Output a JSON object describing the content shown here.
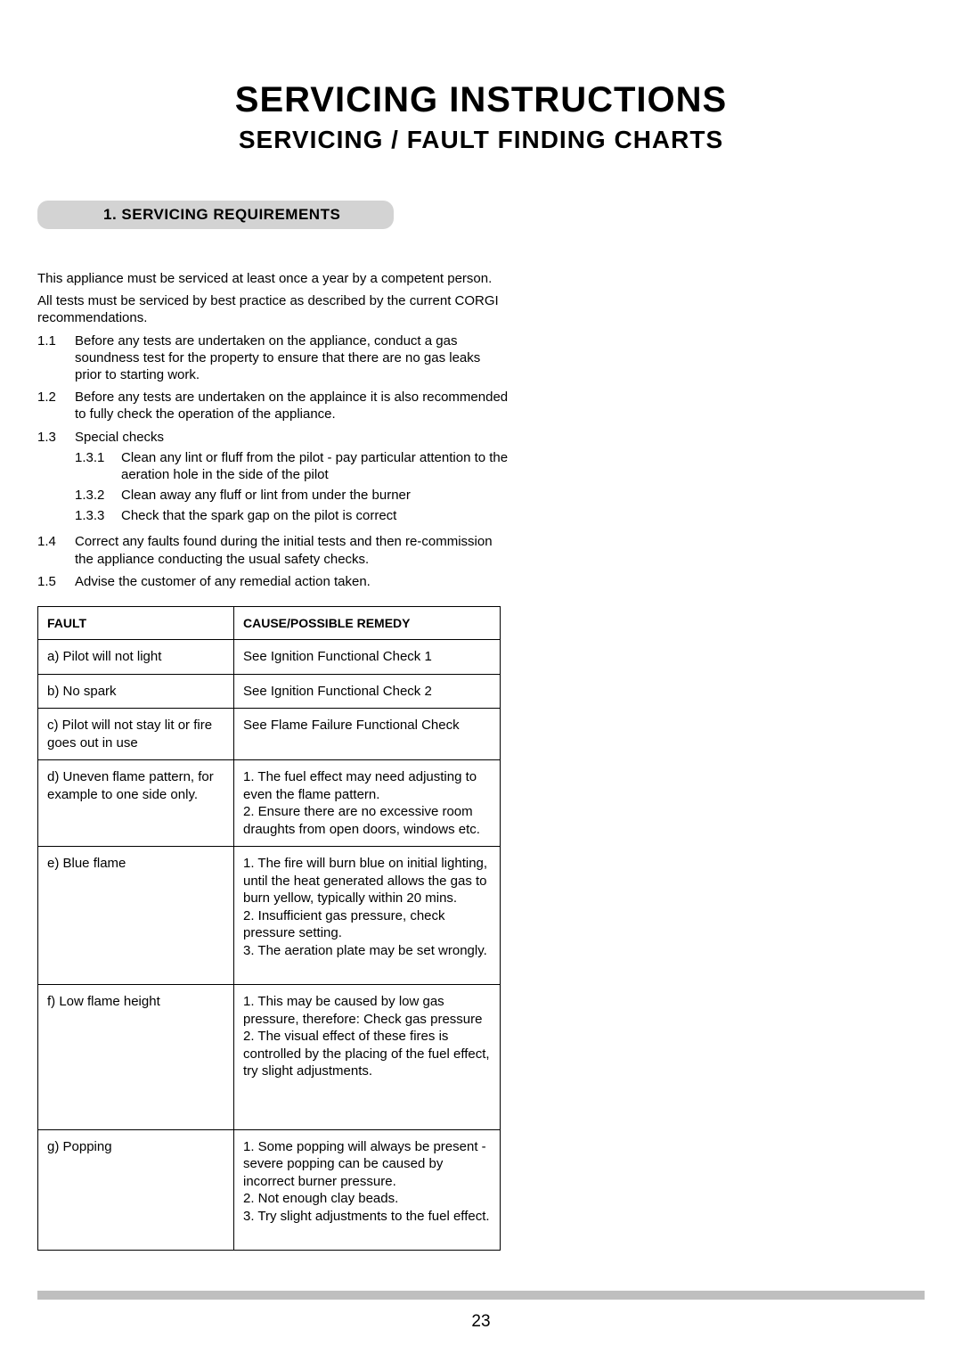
{
  "title_main": "SERVICING INSTRUCTIONS",
  "title_sub": "SERVICING / FAULT FINDING CHARTS",
  "section_heading": "1. SERVICING REQUIREMENTS",
  "intro_paras": [
    "This appliance must be serviced at least once a year by a competent person.",
    "All tests must be serviced by best practice as described by the current CORGI recommendations."
  ],
  "items": [
    {
      "num": "1.1",
      "text": "Before any tests are undertaken on the appliance, conduct a gas soundness test for the property to ensure that there are no gas leaks prior to starting work."
    },
    {
      "num": "1.2",
      "text": "Before any tests are undertaken on the applaince it is also recommended to fully check the operation of the appliance."
    },
    {
      "num": "1.3",
      "text": "Special checks",
      "subitems": [
        {
          "num": "1.3.1",
          "text": "Clean any lint or fluff from the pilot - pay particular attention to the aeration hole in the side of the pilot"
        },
        {
          "num": "1.3.2",
          "text": "Clean away any fluff or lint from under the burner"
        },
        {
          "num": "1.3.3",
          "text": "Check that the spark gap on the pilot is correct"
        }
      ]
    },
    {
      "num": "1.4",
      "text": "Correct any faults found during the initial tests and then re-commission the appliance conducting the usual safety checks."
    },
    {
      "num": "1.5",
      "text": "Advise the customer of any remedial action taken."
    }
  ],
  "table": {
    "headers": [
      "FAULT",
      "CAUSE/POSSIBLE REMEDY"
    ],
    "rows": [
      {
        "fault": "a)  Pilot will not light",
        "remedy": "See Ignition Functional Check 1",
        "cls": ""
      },
      {
        "fault": "b)  No spark",
        "remedy": "See Ignition Functional Check 2",
        "cls": ""
      },
      {
        "fault": "c)  Pilot will not stay lit or fire goes out in use",
        "remedy": "See Flame Failure Functional Check",
        "cls": ""
      },
      {
        "fault": "d)  Uneven flame pattern, for example to one side only.",
        "remedy": "1. The fuel effect may need adjusting to even the flame pattern.\n2. Ensure there are no excessive room draughts from open doors, windows etc.",
        "cls": ""
      },
      {
        "fault": "e)  Blue flame",
        "remedy": "1. The fire will burn blue on initial lighting, until the heat generated allows the gas to burn yellow, typically within 20 mins.\n2. Insufficient gas pressure, check  pressure setting.\n3. The aeration plate may be set wrongly.",
        "cls": "tall2"
      },
      {
        "fault": "f)  Low flame height",
        "remedy": "1. This may be caused by low gas pressure, therefore: Check gas pressure\n2. The visual effect of these fires is controlled by the placing of the fuel effect, try slight adjustments.",
        "cls": "tall"
      },
      {
        "fault": "g) Popping",
        "remedy": "1. Some popping will always be present - severe popping can be caused by incorrect burner pressure.\n2. Not enough clay beads.\n3. Try slight adjustments to the fuel effect.",
        "cls": "tall2"
      }
    ]
  },
  "page_number": "23",
  "colors": {
    "heading_bg": "#d3d3d3",
    "bottom_bar": "#bfbfbf",
    "text": "#000000",
    "page_bg": "#ffffff"
  }
}
